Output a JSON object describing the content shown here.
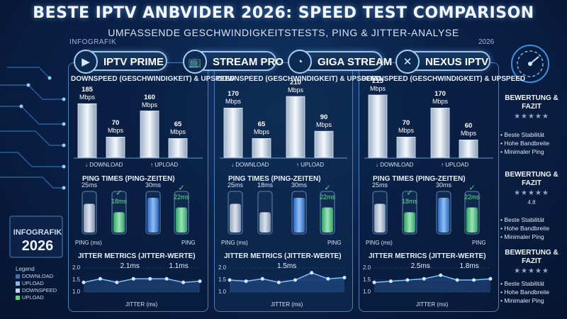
{
  "header": {
    "title": "BESTE IPTV ANBVIDER 2026: SPEED TEST COMPARISON",
    "subtitle": "UMFASSENDE GESCHWINDIGKEITSTESTS, PING & JITTER-ANALYSE",
    "corner_left": "INFOGRAFIK",
    "corner_right": "2026"
  },
  "providers": [
    {
      "name": "IPTV PRIME",
      "icon": "play-icon"
    },
    {
      "name": "STREAM PRO",
      "icon": "tv-icon"
    },
    {
      "name": "GIGA STREAM",
      "icon": "gauge-icon"
    },
    {
      "name": "NEXUS IPTV",
      "icon": "cross-icon"
    }
  ],
  "sections": {
    "speed_title": "DOWNSPEED (GESCHWINDIGKEIT) & UPSPEED",
    "download_label": "DOWNLOAD",
    "upload_label": "UPLOAD",
    "ping_title": "PING TIMES (PING-ZEITEN)",
    "ping_label_left": "PING (ms)",
    "ping_label_right": "PING",
    "jitter_title": "JITTER METRICS (JITTER-WERTE)",
    "jitter_axis": "JITTER (ms)",
    "unit": "Mbps"
  },
  "chart_data": [
    {
      "type": "bar",
      "panel": 1,
      "bars": [
        {
          "value": 185,
          "group": "DOWNLOAD"
        },
        {
          "value": 70,
          "group": "DOWNLOAD"
        },
        {
          "value": 160,
          "group": "UPLOAD"
        },
        {
          "value": 65,
          "group": "UPLOAD"
        }
      ],
      "ping": [
        {
          "label": "25ms",
          "value": 25,
          "good": false
        },
        {
          "label": "18ms",
          "value": 18,
          "good": true
        },
        {
          "label": "30ms",
          "value": 30,
          "good": false
        },
        {
          "label": "22ms",
          "value": 22,
          "good": true
        }
      ],
      "jitter": {
        "yticks": [
          "2.0",
          "1.5",
          "1.0"
        ],
        "ylim": [
          1.0,
          2.0
        ],
        "values": [
          1.4,
          1.55,
          1.4,
          1.55,
          1.55,
          1.55,
          1.4,
          1.45
        ],
        "labels": [
          "2.1ms",
          "1.1ms"
        ]
      }
    },
    {
      "type": "bar",
      "panel": 2,
      "bars": [
        {
          "value": 170,
          "group": "DOWNLOAD"
        },
        {
          "value": 65,
          "group": "DOWNLOAD"
        },
        {
          "value": 210,
          "group": "UPLOAD"
        },
        {
          "value": 90,
          "group": "UPLOAD"
        }
      ],
      "ping": [
        {
          "label": "25ms",
          "value": 25,
          "good": false
        },
        {
          "label": "18ms",
          "value": 18,
          "good": false
        },
        {
          "label": "30ms",
          "value": 30,
          "good": false
        },
        {
          "label": "22ms",
          "value": 22,
          "good": true
        }
      ],
      "jitter": {
        "yticks": [
          "2.0",
          "1.5",
          "1.0"
        ],
        "ylim": [
          1.0,
          2.0
        ],
        "values": [
          1.5,
          1.45,
          1.55,
          1.4,
          1.5,
          1.8,
          1.55,
          1.6
        ],
        "labels": [
          "1.5ms"
        ]
      }
    },
    {
      "type": "bar",
      "panel": 3,
      "bars": [
        {
          "value": 215,
          "group": "DOWNLOAD"
        },
        {
          "value": 70,
          "group": "DOWNLOAD"
        },
        {
          "value": 170,
          "group": "UPLOAD"
        },
        {
          "value": 60,
          "group": "UPLOAD"
        }
      ],
      "ping": [
        {
          "label": "25ms",
          "value": 25,
          "good": false
        },
        {
          "label": "18ms",
          "value": 18,
          "good": true
        },
        {
          "label": "30ms",
          "value": 30,
          "good": false
        },
        {
          "label": "22ms",
          "value": 22,
          "good": true
        }
      ],
      "jitter": {
        "yticks": [
          "2.0",
          "1.5",
          "1.0"
        ],
        "ylim": [
          1.0,
          2.0
        ],
        "values": [
          1.4,
          1.45,
          1.5,
          1.55,
          1.7,
          1.5,
          1.5,
          1.55
        ],
        "labels": [
          "2.5ms",
          "1.8ms"
        ]
      }
    }
  ],
  "sidebar": {
    "ratings": [
      {
        "title": "BEWERTUNG & FAZIT",
        "stars": "★★★★★",
        "score": "",
        "features": [
          "Beste Stabilität",
          "Hohe Bandbreite",
          "Minimaler Ping"
        ]
      },
      {
        "title": "BEWERTUNG & FAZIT",
        "stars": "★★★★★",
        "score": "4.8",
        "features": [
          "Beste Stabilität",
          "Hohe Bandbreite",
          "Minimaler Ping"
        ]
      },
      {
        "title": "BEWERTUNG & FAZIT",
        "stars": "★★★★★",
        "score": "",
        "features": [
          "Beste Stabilität",
          "Hohe Bandbreite",
          "Minimaler Ping"
        ]
      }
    ]
  },
  "infobox": {
    "label": "INFOGRAFIK",
    "year": "2026",
    "legend_title": "Legend",
    "legend": [
      "DOWNLOAD",
      "UPLOAD",
      "DOWNSPEED",
      "UPLOAD"
    ]
  },
  "colors": {
    "accent": "#7fc0ff",
    "good": "#4ee07f",
    "bar": "#dfe8f2",
    "ping_blue": "#3d8cff"
  }
}
